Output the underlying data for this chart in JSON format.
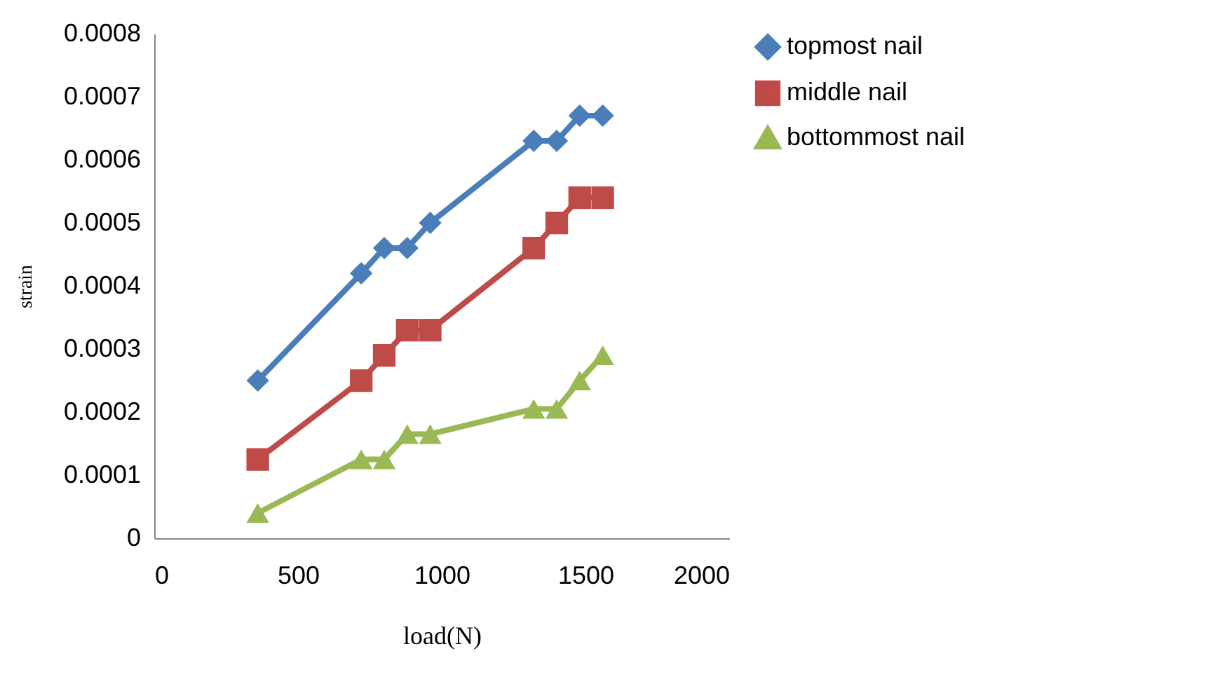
{
  "chart_data": {
    "type": "line",
    "xlabel": "load(N)",
    "ylabel": "strain",
    "x": [
      360,
      720,
      800,
      880,
      960,
      1320,
      1400,
      1480,
      1560
    ],
    "series": [
      {
        "name": "topmost nail",
        "color": "#4a7ebb",
        "marker": "diamond",
        "values": [
          0.00025,
          0.00042,
          0.00046,
          0.00046,
          0.0005,
          0.00063,
          0.00063,
          0.00067,
          0.00067
        ]
      },
      {
        "name": "middle nail",
        "color": "#be4b48",
        "marker": "square",
        "values": [
          0.000125,
          0.00025,
          0.00029,
          0.00033,
          0.00033,
          0.00046,
          0.0005,
          0.00054,
          0.00054
        ]
      },
      {
        "name": "bottommost nail",
        "color": "#98b954",
        "marker": "triangle",
        "values": [
          4e-05,
          0.000125,
          0.000125,
          0.000165,
          0.000165,
          0.000205,
          0.000205,
          0.00025,
          0.00029
        ]
      }
    ],
    "xlim": [
      0,
      2000
    ],
    "xticks": [
      0,
      500,
      1000,
      1500,
      2000
    ],
    "ylim": [
      0,
      0.0008
    ],
    "yticks": [
      0,
      0.0001,
      0.0002,
      0.0003,
      0.0004,
      0.0005,
      0.0006,
      0.0007,
      0.0008
    ],
    "grid": false,
    "legend": "right"
  }
}
